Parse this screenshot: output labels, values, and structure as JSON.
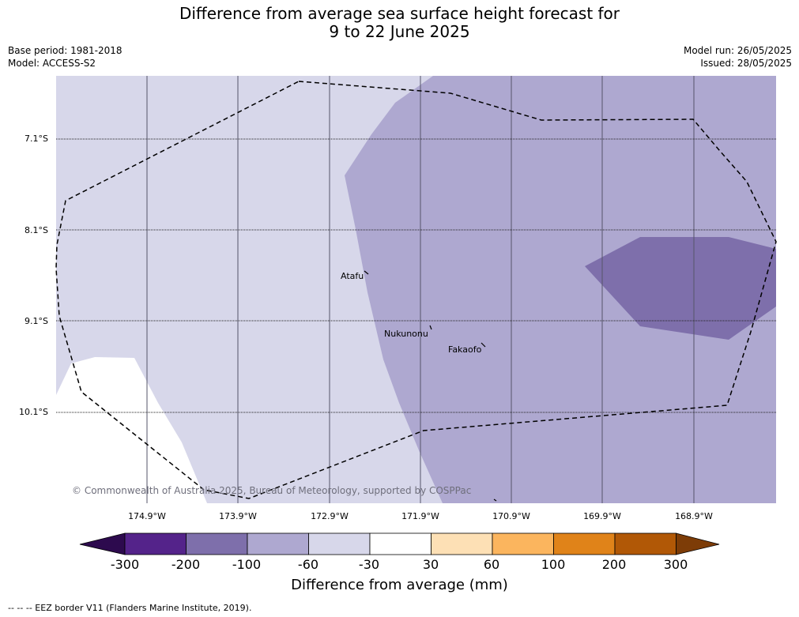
{
  "title_line1": "Difference from average sea surface height forecast for",
  "title_line2": "9 to 22 June 2025",
  "base_period": "Base period: 1981-2018",
  "model": "Model: ACCESS-S2",
  "model_run": "Model run: 26/05/2025",
  "issued": "Issued: 28/05/2025",
  "lat_labels": [
    "7.1°S",
    "8.1°S",
    "9.1°S",
    "10.1°S"
  ],
  "lon_labels": [
    "174.9°W",
    "173.9°W",
    "172.9°W",
    "171.9°W",
    "170.9°W",
    "169.9°W",
    "168.9°W"
  ],
  "places": [
    "Atafu",
    "Nukunonu",
    "Fakaofo"
  ],
  "copyright": "© Commonwealth of Australia 2025, Bureau of Meteorology, supported by COSPPac",
  "colorbar": {
    "labels": [
      "-300",
      "-200",
      "-100",
      "-60",
      "-30",
      "30",
      "60",
      "100",
      "200",
      "300"
    ],
    "colors": [
      "#2d0a4e",
      "#54238a",
      "#7e6fab",
      "#aea8d0",
      "#d7d7ea",
      "#ffffff",
      "#fde0b5",
      "#fbb55e",
      "#e08319",
      "#b15806",
      "#7d3c07"
    ],
    "title": "Difference from average (mm)"
  },
  "footer": "--  --  -- EEZ border V11 (Flanders Marine Institute, 2019)."
}
